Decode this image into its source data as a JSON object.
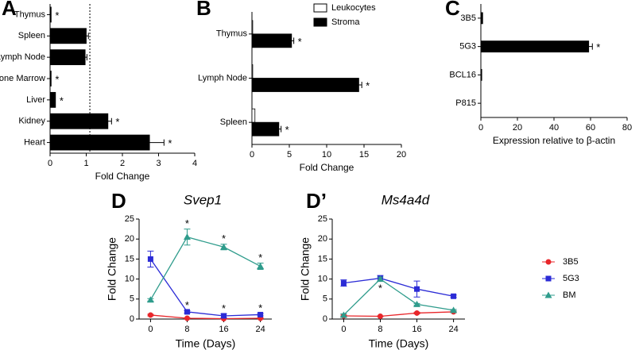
{
  "chart_data": [
    {
      "panel": "A",
      "type": "bar",
      "categories": [
        "Thymus",
        "Spleen",
        "Lymph Node",
        "Bone Marrow",
        "Liver",
        "Kidney",
        "Heart"
      ],
      "values": [
        0.03,
        1.0,
        0.97,
        0.03,
        0.15,
        1.6,
        2.75
      ],
      "errors": [
        null,
        0.06,
        0.05,
        null,
        null,
        0.1,
        0.4
      ],
      "significance": [
        "*",
        null,
        null,
        "*",
        "*",
        "*",
        "*"
      ],
      "color": "#000000",
      "xlabel": "Fold Change",
      "xlim": [
        0,
        4
      ],
      "xticks": [
        0,
        1,
        2,
        3,
        4
      ],
      "reference_line": 1.1
    },
    {
      "panel": "B",
      "type": "bar",
      "categories": [
        "Thymus",
        "Lymph Node",
        "Spleen"
      ],
      "series": [
        {
          "name": "Leukocytes",
          "color": "#ffffff",
          "values": [
            0.1,
            0.1,
            0.4
          ]
        },
        {
          "name": "Stroma",
          "color": "#000000",
          "values": [
            5.3,
            14.3,
            3.6
          ],
          "errors": [
            0.3,
            0.4,
            0.3
          ],
          "significance": [
            "*",
            "*",
            "*"
          ]
        }
      ],
      "xlabel": "Fold Change",
      "xlim": [
        0,
        20
      ],
      "xticks": [
        0,
        5,
        10,
        15,
        20
      ],
      "legend": "upper right"
    },
    {
      "panel": "C",
      "type": "bar",
      "categories": [
        "3B5",
        "5G3",
        "BCL16",
        "P815"
      ],
      "values": [
        1,
        59,
        0.5,
        0
      ],
      "errors": [
        null,
        2,
        null,
        null
      ],
      "significance": [
        null,
        "*",
        null,
        null
      ],
      "color": "#000000",
      "xlabel": "Expression relative to β-actin",
      "xlim": [
        0,
        80
      ],
      "xticks": [
        0,
        20,
        40,
        60,
        80
      ]
    },
    {
      "panel": "D",
      "type": "line",
      "title": "Svep1",
      "xlabel": "Time (Days)",
      "ylabel": "Fold Change",
      "x": [
        0,
        8,
        16,
        24
      ],
      "xlim": [
        -2.5,
        26.5
      ],
      "xticks": [
        0,
        8,
        16,
        24
      ],
      "ylim": [
        0,
        25
      ],
      "yticks": [
        0,
        5,
        10,
        15,
        20,
        25
      ],
      "series": [
        {
          "color": "#e8262a",
          "marker": "circle",
          "values": [
            1,
            0.2,
            0.1,
            0.2
          ],
          "errors": [
            0.2,
            0.1,
            0.1,
            0.1
          ]
        },
        {
          "color": "#2b2bd6",
          "marker": "square",
          "values": [
            15,
            1.8,
            0.8,
            1.1
          ],
          "errors": [
            2,
            0.3,
            0.5,
            0.3
          ],
          "significance": [
            null,
            "*",
            "*",
            "*"
          ]
        },
        {
          "color": "#2f9c8c",
          "marker": "triangle",
          "values": [
            4.8,
            20.5,
            18,
            13.2
          ],
          "errors": [
            0.3,
            2,
            0.7,
            0.8
          ],
          "significance": [
            null,
            "*",
            "*",
            "*"
          ]
        }
      ]
    },
    {
      "panel": "D’",
      "type": "line",
      "title": "Ms4a4d",
      "xlabel": "Time (Days)",
      "ylabel": "Fold Change",
      "x": [
        0,
        8,
        16,
        24
      ],
      "xlim": [
        -2.5,
        26.5
      ],
      "xticks": [
        0,
        8,
        16,
        24
      ],
      "ylim": [
        0,
        25
      ],
      "yticks": [
        0,
        5,
        10,
        15,
        20,
        25
      ],
      "legend": "right",
      "series": [
        {
          "name": "3B5",
          "color": "#e8262a",
          "marker": "circle",
          "values": [
            0.8,
            0.7,
            1.5,
            1.8
          ],
          "errors": [
            0.2,
            0.1,
            0.2,
            0.2
          ]
        },
        {
          "name": "5G3",
          "color": "#2b2bd6",
          "marker": "square",
          "values": [
            9,
            10.2,
            7.5,
            5.7
          ],
          "errors": [
            0.8,
            0.7,
            2,
            0.3
          ]
        },
        {
          "name": "BM",
          "color": "#2f9c8c",
          "marker": "triangle",
          "values": [
            1,
            10,
            3.7,
            2.2
          ],
          "errors": [
            0.3,
            0.5,
            0.2,
            0.2
          ],
          "significance": [
            null,
            "*",
            null,
            null
          ]
        }
      ]
    }
  ]
}
